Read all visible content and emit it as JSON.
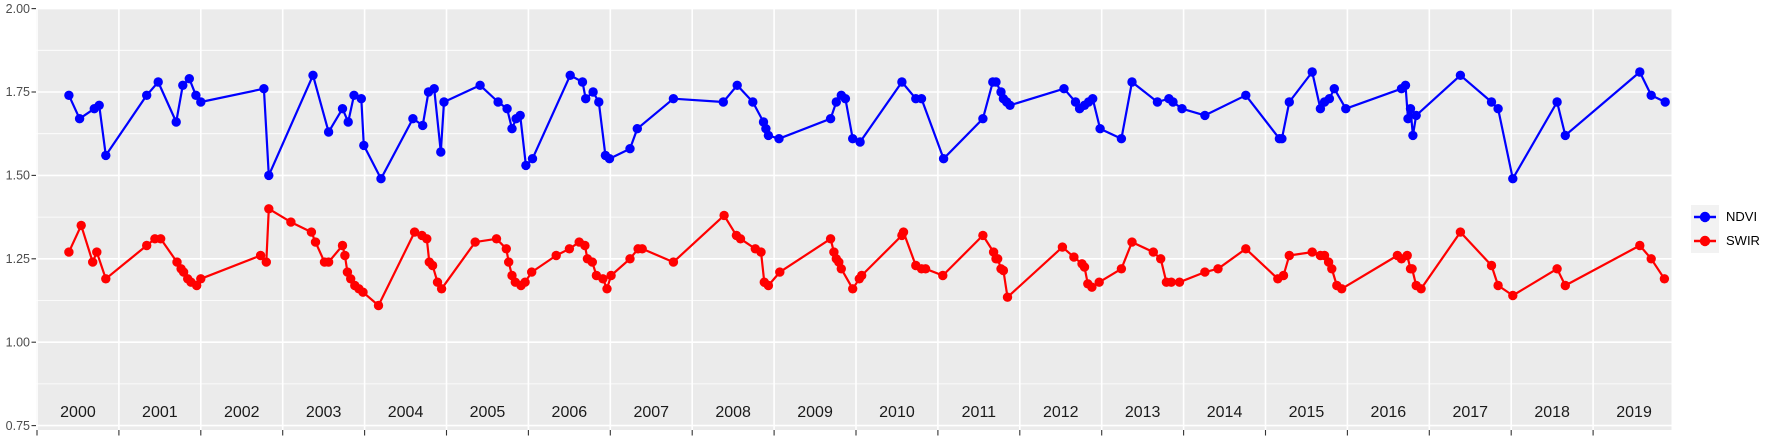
{
  "chart_data": {
    "type": "line",
    "title": "",
    "xlabel": "",
    "ylabel": "",
    "grid": true,
    "legend_position": "right-center",
    "style": {
      "panel_background": "#EBEBEB",
      "grid_color": "#FFFFFF",
      "axis_text_color": "#4D4D4D",
      "x_year_label_color": "#1A1A1A",
      "tick_color": "#333333",
      "legend_key_background": "#F2F2F2",
      "marker_radius": 4.7,
      "line_width": 2.2
    },
    "y_axis": {
      "tick_labels": [
        "2.00",
        "1.75",
        "1.50",
        "1.25",
        "1.00",
        "0.75"
      ],
      "tick_values": [
        2.0,
        1.75,
        1.5,
        1.25,
        1.0,
        0.75
      ],
      "minor_gridlines": [
        1.875,
        1.625,
        1.375,
        1.125,
        0.875
      ],
      "range": [
        0.737,
        2.0
      ]
    },
    "x_axis": {
      "tick_labels": [
        "2000",
        "2001",
        "2002",
        "2003",
        "2004",
        "2005",
        "2006",
        "2007",
        "2008",
        "2009",
        "2010",
        "2011",
        "2012",
        "2013",
        "2014",
        "2015",
        "2016",
        "2017",
        "2018",
        "2019"
      ],
      "tick_values": [
        2000,
        2001,
        2002,
        2003,
        2004,
        2005,
        2006,
        2007,
        2008,
        2009,
        2010,
        2011,
        2012,
        2013,
        2014,
        2015,
        2016,
        2017,
        2018,
        2019
      ],
      "range": [
        1999.99,
        2019.95
      ]
    },
    "series": [
      {
        "name": "SWIR",
        "color": "#FF0000",
        "points": [
          [
            2000.39,
            1.27
          ],
          [
            2000.54,
            1.35
          ],
          [
            2000.68,
            1.24
          ],
          [
            2000.73,
            1.27
          ],
          [
            2000.84,
            1.19
          ],
          [
            2001.34,
            1.29
          ],
          [
            2001.44,
            1.31
          ],
          [
            2001.51,
            1.31
          ],
          [
            2001.71,
            1.24
          ],
          [
            2001.76,
            1.22
          ],
          [
            2001.79,
            1.21
          ],
          [
            2001.84,
            1.19
          ],
          [
            2001.88,
            1.18
          ],
          [
            2001.95,
            1.17
          ],
          [
            2002.0,
            1.19
          ],
          [
            2002.73,
            1.26
          ],
          [
            2002.8,
            1.24
          ],
          [
            2002.83,
            1.4
          ],
          [
            2003.1,
            1.36
          ],
          [
            2003.35,
            1.33
          ],
          [
            2003.4,
            1.3
          ],
          [
            2003.51,
            1.24
          ],
          [
            2003.56,
            1.24
          ],
          [
            2003.73,
            1.29
          ],
          [
            2003.76,
            1.26
          ],
          [
            2003.79,
            1.21
          ],
          [
            2003.83,
            1.19
          ],
          [
            2003.88,
            1.17
          ],
          [
            2003.93,
            1.16
          ],
          [
            2003.98,
            1.15
          ],
          [
            2004.17,
            1.11
          ],
          [
            2004.61,
            1.33
          ],
          [
            2004.7,
            1.32
          ],
          [
            2004.76,
            1.31
          ],
          [
            2004.79,
            1.24
          ],
          [
            2004.83,
            1.23
          ],
          [
            2004.89,
            1.18
          ],
          [
            2004.94,
            1.16
          ],
          [
            2005.35,
            1.3
          ],
          [
            2005.61,
            1.31
          ],
          [
            2005.73,
            1.28
          ],
          [
            2005.76,
            1.24
          ],
          [
            2005.8,
            1.2
          ],
          [
            2005.84,
            1.18
          ],
          [
            2005.91,
            1.17
          ],
          [
            2005.96,
            1.18
          ],
          [
            2006.04,
            1.21
          ],
          [
            2006.34,
            1.26
          ],
          [
            2006.5,
            1.28
          ],
          [
            2006.62,
            1.3
          ],
          [
            2006.69,
            1.29
          ],
          [
            2006.72,
            1.25
          ],
          [
            2006.78,
            1.24
          ],
          [
            2006.83,
            1.2
          ],
          [
            2006.91,
            1.19
          ],
          [
            2006.96,
            1.16
          ],
          [
            2007.01,
            1.2
          ],
          [
            2007.24,
            1.25
          ],
          [
            2007.34,
            1.28
          ],
          [
            2007.39,
            1.28
          ],
          [
            2007.77,
            1.24
          ],
          [
            2008.39,
            1.38
          ],
          [
            2008.54,
            1.32
          ],
          [
            2008.59,
            1.31
          ],
          [
            2008.77,
            1.28
          ],
          [
            2008.84,
            1.27
          ],
          [
            2008.88,
            1.18
          ],
          [
            2008.93,
            1.17
          ],
          [
            2009.07,
            1.21
          ],
          [
            2009.69,
            1.31
          ],
          [
            2009.73,
            1.27
          ],
          [
            2009.76,
            1.25
          ],
          [
            2009.79,
            1.24
          ],
          [
            2009.82,
            1.22
          ],
          [
            2009.96,
            1.16
          ],
          [
            2010.04,
            1.19
          ],
          [
            2010.07,
            1.2
          ],
          [
            2010.56,
            1.32
          ],
          [
            2010.58,
            1.33
          ],
          [
            2010.73,
            1.23
          ],
          [
            2010.8,
            1.22
          ],
          [
            2010.85,
            1.22
          ],
          [
            2011.06,
            1.2
          ],
          [
            2011.55,
            1.32
          ],
          [
            2011.68,
            1.27
          ],
          [
            2011.71,
            1.25
          ],
          [
            2011.73,
            1.25
          ],
          [
            2011.77,
            1.22
          ],
          [
            2011.8,
            1.215
          ],
          [
            2011.85,
            1.135
          ],
          [
            2012.52,
            1.285
          ],
          [
            2012.66,
            1.255
          ],
          [
            2012.76,
            1.235
          ],
          [
            2012.79,
            1.225
          ],
          [
            2012.83,
            1.175
          ],
          [
            2012.88,
            1.165
          ],
          [
            2012.97,
            1.18
          ],
          [
            2013.24,
            1.22
          ],
          [
            2013.37,
            1.3
          ],
          [
            2013.63,
            1.27
          ],
          [
            2013.72,
            1.25
          ],
          [
            2013.79,
            1.18
          ],
          [
            2013.85,
            1.18
          ],
          [
            2013.95,
            1.18
          ],
          [
            2014.26,
            1.21
          ],
          [
            2014.42,
            1.22
          ],
          [
            2014.76,
            1.28
          ],
          [
            2015.15,
            1.19
          ],
          [
            2015.22,
            1.2
          ],
          [
            2015.29,
            1.26
          ],
          [
            2015.57,
            1.27
          ],
          [
            2015.67,
            1.26
          ],
          [
            2015.72,
            1.26
          ],
          [
            2015.77,
            1.24
          ],
          [
            2015.81,
            1.22
          ],
          [
            2015.87,
            1.17
          ],
          [
            2015.93,
            1.16
          ],
          [
            2016.61,
            1.26
          ],
          [
            2016.66,
            1.25
          ],
          [
            2016.73,
            1.26
          ],
          [
            2016.77,
            1.22
          ],
          [
            2016.79,
            1.22
          ],
          [
            2016.84,
            1.17
          ],
          [
            2016.9,
            1.16
          ],
          [
            2017.38,
            1.33
          ],
          [
            2017.76,
            1.23
          ],
          [
            2017.84,
            1.17
          ],
          [
            2018.02,
            1.14
          ],
          [
            2018.56,
            1.22
          ],
          [
            2018.66,
            1.17
          ],
          [
            2019.57,
            1.29
          ],
          [
            2019.71,
            1.25
          ],
          [
            2019.87,
            1.19
          ]
        ]
      },
      {
        "name": "NDVI",
        "color": "#0000FF",
        "points": [
          [
            2000.39,
            1.74
          ],
          [
            2000.52,
            1.67
          ],
          [
            2000.7,
            1.7
          ],
          [
            2000.76,
            1.71
          ],
          [
            2000.84,
            1.56
          ],
          [
            2001.34,
            1.74
          ],
          [
            2001.48,
            1.78
          ],
          [
            2001.7,
            1.66
          ],
          [
            2001.78,
            1.77
          ],
          [
            2001.86,
            1.79
          ],
          [
            2001.94,
            1.74
          ],
          [
            2002.0,
            1.72
          ],
          [
            2002.77,
            1.76
          ],
          [
            2002.83,
            1.5
          ],
          [
            2003.37,
            1.8
          ],
          [
            2003.56,
            1.63
          ],
          [
            2003.73,
            1.7
          ],
          [
            2003.8,
            1.66
          ],
          [
            2003.87,
            1.74
          ],
          [
            2003.96,
            1.73
          ],
          [
            2003.99,
            1.59
          ],
          [
            2004.2,
            1.49
          ],
          [
            2004.59,
            1.67
          ],
          [
            2004.71,
            1.65
          ],
          [
            2004.78,
            1.75
          ],
          [
            2004.85,
            1.76
          ],
          [
            2004.93,
            1.57
          ],
          [
            2004.97,
            1.72
          ],
          [
            2005.41,
            1.77
          ],
          [
            2005.63,
            1.72
          ],
          [
            2005.74,
            1.7
          ],
          [
            2005.8,
            1.64
          ],
          [
            2005.85,
            1.67
          ],
          [
            2005.9,
            1.68
          ],
          [
            2005.97,
            1.53
          ],
          [
            2006.05,
            1.55
          ],
          [
            2006.51,
            1.8
          ],
          [
            2006.66,
            1.78
          ],
          [
            2006.7,
            1.73
          ],
          [
            2006.79,
            1.75
          ],
          [
            2006.86,
            1.72
          ],
          [
            2006.94,
            1.56
          ],
          [
            2006.99,
            1.55
          ],
          [
            2007.24,
            1.58
          ],
          [
            2007.33,
            1.64
          ],
          [
            2007.77,
            1.73
          ],
          [
            2008.38,
            1.72
          ],
          [
            2008.55,
            1.77
          ],
          [
            2008.74,
            1.72
          ],
          [
            2008.87,
            1.66
          ],
          [
            2008.9,
            1.64
          ],
          [
            2008.93,
            1.62
          ],
          [
            2009.06,
            1.61
          ],
          [
            2009.69,
            1.67
          ],
          [
            2009.76,
            1.72
          ],
          [
            2009.82,
            1.74
          ],
          [
            2009.87,
            1.73
          ],
          [
            2009.96,
            1.61
          ],
          [
            2010.05,
            1.6
          ],
          [
            2010.56,
            1.78
          ],
          [
            2010.73,
            1.73
          ],
          [
            2010.8,
            1.73
          ],
          [
            2011.07,
            1.55
          ],
          [
            2011.55,
            1.67
          ],
          [
            2011.67,
            1.78
          ],
          [
            2011.71,
            1.78
          ],
          [
            2011.77,
            1.75
          ],
          [
            2011.8,
            1.73
          ],
          [
            2011.84,
            1.72
          ],
          [
            2011.88,
            1.71
          ],
          [
            2012.54,
            1.76
          ],
          [
            2012.68,
            1.72
          ],
          [
            2012.73,
            1.7
          ],
          [
            2012.79,
            1.71
          ],
          [
            2012.84,
            1.72
          ],
          [
            2012.89,
            1.73
          ],
          [
            2012.98,
            1.64
          ],
          [
            2013.24,
            1.61
          ],
          [
            2013.37,
            1.78
          ],
          [
            2013.68,
            1.72
          ],
          [
            2013.82,
            1.73
          ],
          [
            2013.87,
            1.72
          ],
          [
            2013.98,
            1.7
          ],
          [
            2014.26,
            1.68
          ],
          [
            2014.76,
            1.74
          ],
          [
            2015.17,
            1.61
          ],
          [
            2015.2,
            1.61
          ],
          [
            2015.29,
            1.72
          ],
          [
            2015.57,
            1.81
          ],
          [
            2015.67,
            1.7
          ],
          [
            2015.72,
            1.72
          ],
          [
            2015.78,
            1.73
          ],
          [
            2015.84,
            1.76
          ],
          [
            2015.98,
            1.7
          ],
          [
            2016.66,
            1.76
          ],
          [
            2016.71,
            1.77
          ],
          [
            2016.74,
            1.67
          ],
          [
            2016.77,
            1.7
          ],
          [
            2016.8,
            1.62
          ],
          [
            2016.84,
            1.68
          ],
          [
            2017.38,
            1.8
          ],
          [
            2017.76,
            1.72
          ],
          [
            2017.84,
            1.7
          ],
          [
            2018.02,
            1.49
          ],
          [
            2018.56,
            1.72
          ],
          [
            2018.66,
            1.62
          ],
          [
            2019.57,
            1.81
          ],
          [
            2019.71,
            1.74
          ],
          [
            2019.88,
            1.72
          ]
        ]
      }
    ],
    "legend": {
      "entries": [
        {
          "label": "NDVI",
          "color": "#0000FF"
        },
        {
          "label": "SWIR",
          "color": "#FF0000"
        }
      ]
    }
  }
}
